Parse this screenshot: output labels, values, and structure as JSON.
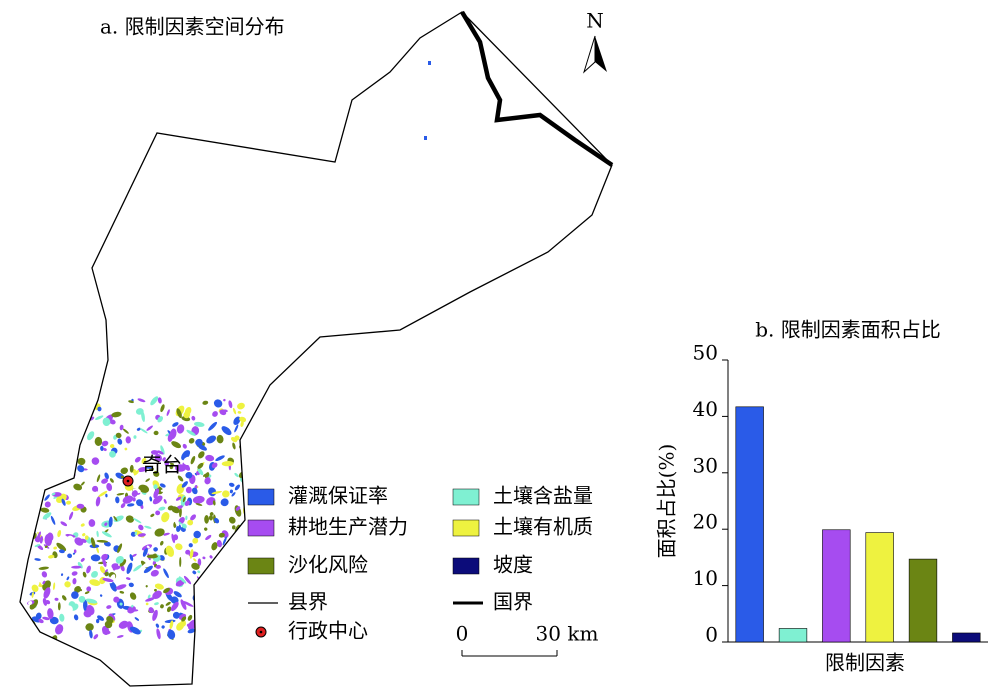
{
  "map": {
    "title": "a. 限制因素空间分布",
    "north": "N",
    "place": "奇台",
    "legend": [
      {
        "label": "灌溉保证率",
        "symbol": "patch",
        "color": "#2a5be8"
      },
      {
        "label": "土壤含盐量",
        "symbol": "patch",
        "color": "#7ff0d2"
      },
      {
        "label": "耕地生产潜力",
        "symbol": "patch",
        "color": "#a64cf0"
      },
      {
        "label": "土壤有机质",
        "symbol": "patch",
        "color": "#eef240"
      },
      {
        "label": "沙化风险",
        "symbol": "patch",
        "color": "#6b8514"
      },
      {
        "label": "坡度",
        "symbol": "patch",
        "color": "#0c0c7a"
      },
      {
        "label": "县界",
        "symbol": "line",
        "color": "#000000"
      },
      {
        "label": "国界",
        "symbol": "thick-line",
        "color": "#000000"
      },
      {
        "label": "行政中心",
        "symbol": "dot",
        "color": "#e02020"
      }
    ],
    "scale": [
      "0",
      "30 km"
    ]
  },
  "chart_data": {
    "type": "bar",
    "title": "b. 限制因素面积占比",
    "x_label": "限制因素",
    "y_label": "面积占比(%)",
    "categories": [
      null,
      null,
      null,
      null,
      null,
      null
    ],
    "values": [
      41.7,
      2.4,
      19.9,
      19.4,
      14.7,
      1.6
    ],
    "colors": [
      "#2a5be8",
      "#7ff0d2",
      "#a64cf0",
      "#eef240",
      "#6b8514",
      "#0c0c7a"
    ],
    "ylim": [
      0,
      50
    ],
    "yticks": [
      0,
      10,
      20,
      30,
      40,
      50
    ]
  }
}
